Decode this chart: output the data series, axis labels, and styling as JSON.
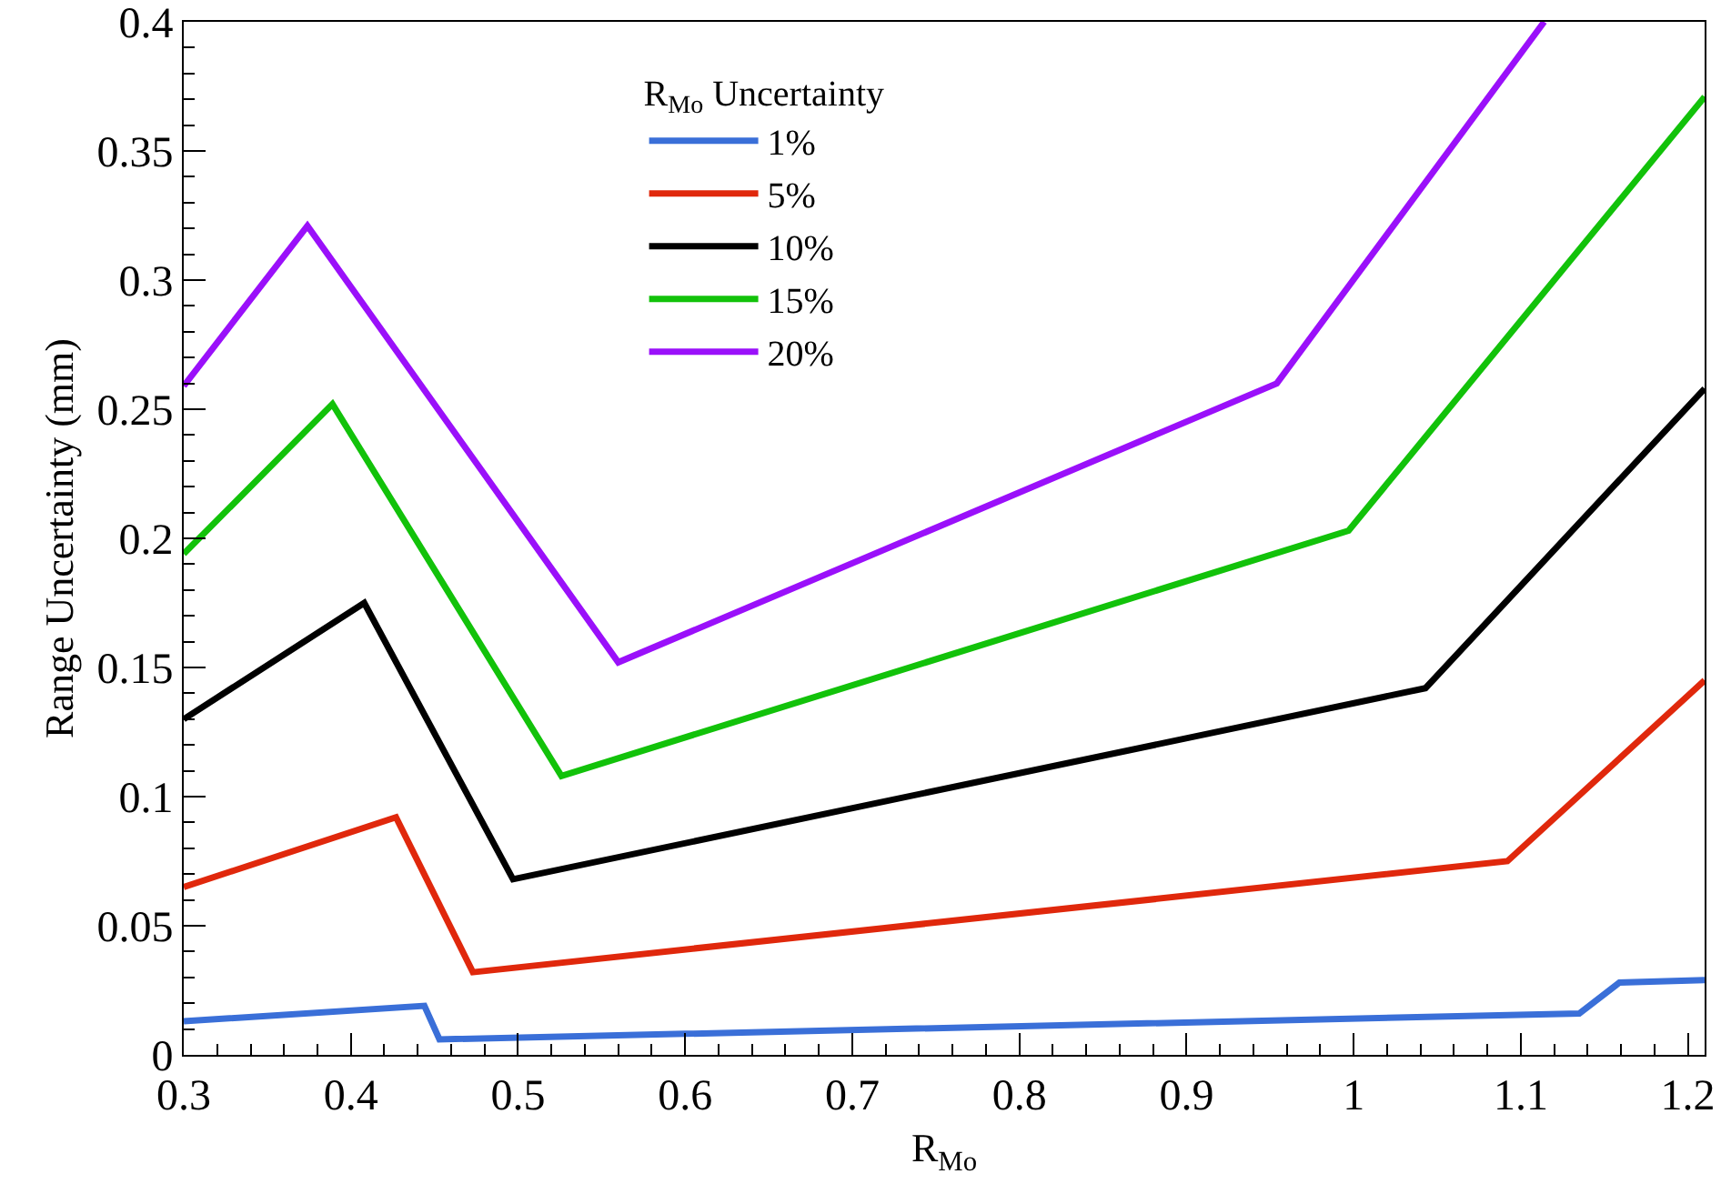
{
  "chart_data": {
    "type": "line",
    "xlabel": "R$_{Mo}$",
    "ylabel": "Range Uncertainty (mm)",
    "legend_title": "R$_{Mo}$ Uncertainty",
    "legend": "top left",
    "grid": false,
    "marker": "none",
    "line_style": "solid",
    "xlim": [
      0.3,
      1.21
    ],
    "xticks": [
      0.3,
      0.4,
      0.5,
      0.6,
      0.7,
      0.8,
      0.9,
      1,
      1.1,
      1.2
    ],
    "ylim": [
      0,
      0.4
    ],
    "yticks": [
      0,
      0.05,
      0.1,
      0.15,
      0.2,
      0.25,
      0.3,
      0.35,
      0.4
    ],
    "series": [
      {
        "name": "1%",
        "color": "#3a6fd8",
        "x": [
          0.3,
          0.444,
          0.453,
          1.135,
          1.159,
          1.21
        ],
        "values": [
          0.013,
          0.019,
          0.006,
          0.016,
          0.028,
          0.029
        ]
      },
      {
        "name": "5%",
        "color": "#e0280c",
        "x": [
          0.3,
          0.427,
          0.473,
          1.092,
          1.21
        ],
        "values": [
          0.065,
          0.092,
          0.032,
          0.075,
          0.145
        ]
      },
      {
        "name": "10%",
        "color": "#000000",
        "x": [
          0.3,
          0.408,
          0.497,
          1.043,
          1.21
        ],
        "values": [
          0.13,
          0.175,
          0.068,
          0.142,
          0.258
        ]
      },
      {
        "name": "15%",
        "color": "#12c20a",
        "x": [
          0.3,
          0.389,
          0.526,
          0.997,
          1.21
        ],
        "values": [
          0.194,
          0.252,
          0.108,
          0.203,
          0.371
        ]
      },
      {
        "name": "20%",
        "color": "#9a10fa",
        "x": [
          0.3,
          0.374,
          0.56,
          0.954,
          1.114
        ],
        "values": [
          0.259,
          0.321,
          0.152,
          0.26,
          0.4
        ]
      }
    ]
  }
}
